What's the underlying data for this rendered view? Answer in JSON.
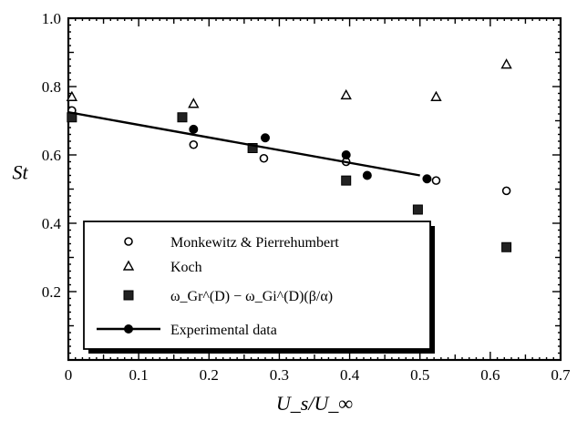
{
  "chart_data": {
    "type": "scatter",
    "xlabel": "U_s/U_∞",
    "ylabel": "St",
    "xlim": [
      0,
      0.7
    ],
    "ylim": [
      0,
      1.0
    ],
    "xticks": [
      "0",
      "0.1",
      "0.2",
      "0.3",
      "0.4",
      "0.5",
      "0.6",
      "0.7"
    ],
    "yticks": [
      "0.2",
      "0.4",
      "0.6",
      "0.8",
      "1.0"
    ],
    "grid": false,
    "legend_position": "bottom-left",
    "series": [
      {
        "name": "Monkewitz & Pierrehumbert",
        "marker": "open-circle",
        "points": [
          [
            0.005,
            0.73
          ],
          [
            0.178,
            0.63
          ],
          [
            0.278,
            0.59
          ],
          [
            0.395,
            0.58
          ],
          [
            0.523,
            0.525
          ],
          [
            0.623,
            0.495
          ]
        ]
      },
      {
        "name": "Koch",
        "marker": "open-triangle",
        "points": [
          [
            0.005,
            0.77
          ],
          [
            0.178,
            0.75
          ],
          [
            0.395,
            0.775
          ],
          [
            0.523,
            0.77
          ],
          [
            0.623,
            0.865
          ]
        ]
      },
      {
        "name": "ω_Gr^(D) − ω_Gi^(D)(β/α)",
        "marker": "filled-square",
        "points": [
          [
            0.005,
            0.71
          ],
          [
            0.162,
            0.71
          ],
          [
            0.262,
            0.62
          ],
          [
            0.395,
            0.525
          ],
          [
            0.497,
            0.44
          ],
          [
            0.623,
            0.33
          ]
        ]
      },
      {
        "name": "Experimental data",
        "marker": "filled-circle-line",
        "points": [
          [
            0.178,
            0.675
          ],
          [
            0.28,
            0.65
          ],
          [
            0.395,
            0.6
          ],
          [
            0.425,
            0.54
          ],
          [
            0.51,
            0.53
          ]
        ],
        "fit_line": [
          [
            0.0,
            0.725
          ],
          [
            0.5,
            0.54
          ]
        ]
      }
    ]
  }
}
